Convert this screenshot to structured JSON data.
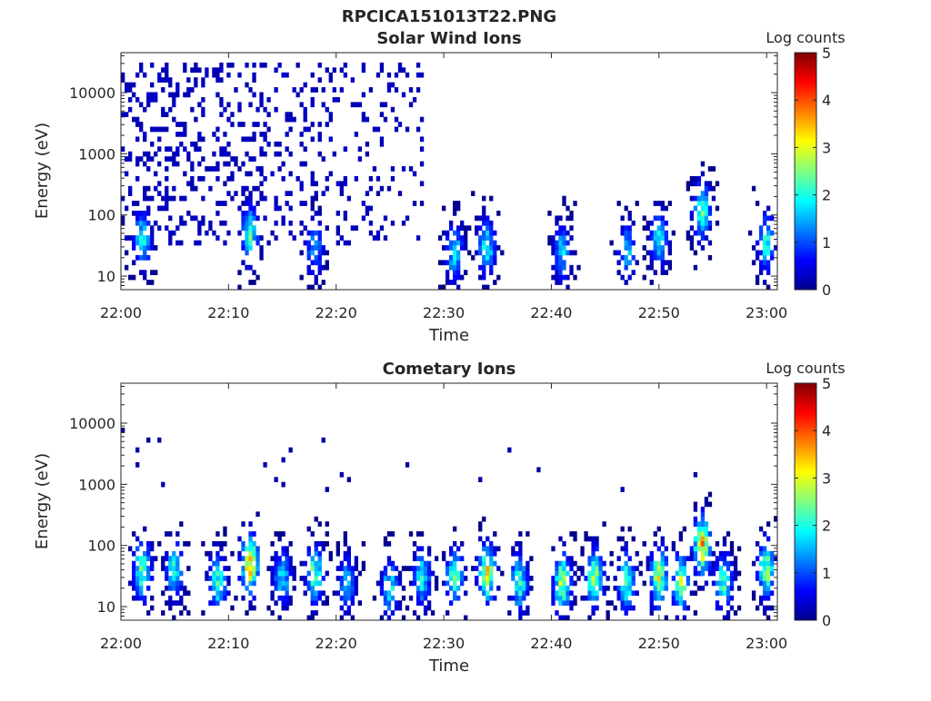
{
  "figure": {
    "title": "RPCICA151013T22.PNG"
  },
  "chart_data": [
    {
      "type": "heatmap",
      "title": "Solar Wind Ions",
      "xlabel": "Time",
      "ylabel": "Energy (eV)",
      "x_range": [
        "22:00",
        "23:01"
      ],
      "x_ticks": [
        "22:00",
        "22:10",
        "22:20",
        "22:30",
        "22:40",
        "22:50",
        "23:00"
      ],
      "y_scale": "log",
      "y_range": [
        6,
        45000
      ],
      "y_ticks": [
        "10",
        "100",
        "1000",
        "10000"
      ],
      "colorbar": {
        "label": "Log counts",
        "min": 0,
        "max": 5,
        "ticks": [
          "0",
          "1",
          "2",
          "3",
          "4",
          "5"
        ],
        "colormap": "jet"
      },
      "bursts": [
        {
          "t": "22:02",
          "e_peak": 40,
          "level": 2.0
        },
        {
          "t": "22:12",
          "e_peak": 50,
          "level": 2.2
        },
        {
          "t": "22:18",
          "e_peak": 30,
          "level": 1.5
        },
        {
          "t": "22:31",
          "e_peak": 25,
          "level": 1.8
        },
        {
          "t": "22:34",
          "e_peak": 30,
          "level": 2.0
        },
        {
          "t": "22:41",
          "e_peak": 25,
          "level": 1.7
        },
        {
          "t": "22:47",
          "e_peak": 25,
          "level": 1.6
        },
        {
          "t": "22:50",
          "e_peak": 40,
          "level": 1.8
        },
        {
          "t": "22:54",
          "e_peak": 120,
          "level": 2.3
        },
        {
          "t": "23:00",
          "e_peak": 35,
          "level": 2.0
        }
      ],
      "diffuse_high_energy": {
        "t_start": "22:00",
        "t_end": "22:28",
        "e_min": 30,
        "e_max": 30000,
        "level": 0.3
      }
    },
    {
      "type": "heatmap",
      "title": "Cometary Ions",
      "xlabel": "Time",
      "ylabel": "Energy (eV)",
      "x_range": [
        "22:00",
        "23:01"
      ],
      "x_ticks": [
        "22:00",
        "22:10",
        "22:20",
        "22:30",
        "22:40",
        "22:50",
        "23:00"
      ],
      "y_scale": "log",
      "y_range": [
        6,
        45000
      ],
      "y_ticks": [
        "10",
        "100",
        "1000",
        "10000"
      ],
      "colorbar": {
        "label": "Log counts",
        "min": 0,
        "max": 5,
        "ticks": [
          "0",
          "1",
          "2",
          "3",
          "4",
          "5"
        ],
        "colormap": "jet"
      },
      "bursts": [
        {
          "t": "22:02",
          "e_peak": 40,
          "level": 2.6
        },
        {
          "t": "22:05",
          "e_peak": 40,
          "level": 2.0
        },
        {
          "t": "22:09",
          "e_peak": 25,
          "level": 2.2
        },
        {
          "t": "22:12",
          "e_peak": 50,
          "level": 3.4
        },
        {
          "t": "22:15",
          "e_peak": 30,
          "level": 1.8
        },
        {
          "t": "22:18",
          "e_peak": 35,
          "level": 2.4
        },
        {
          "t": "22:21",
          "e_peak": 25,
          "level": 1.5
        },
        {
          "t": "22:25",
          "e_peak": 20,
          "level": 2.0
        },
        {
          "t": "22:28",
          "e_peak": 30,
          "level": 2.0
        },
        {
          "t": "22:31",
          "e_peak": 30,
          "level": 2.4
        },
        {
          "t": "22:34",
          "e_peak": 35,
          "level": 3.2
        },
        {
          "t": "22:37",
          "e_peak": 25,
          "level": 2.2
        },
        {
          "t": "22:41",
          "e_peak": 25,
          "level": 2.8
        },
        {
          "t": "22:44",
          "e_peak": 30,
          "level": 2.6
        },
        {
          "t": "22:47",
          "e_peak": 25,
          "level": 2.4
        },
        {
          "t": "22:50",
          "e_peak": 30,
          "level": 2.9
        },
        {
          "t": "22:52",
          "e_peak": 25,
          "level": 2.6
        },
        {
          "t": "22:54",
          "e_peak": 100,
          "level": 3.4
        },
        {
          "t": "22:56",
          "e_peak": 25,
          "level": 2.2
        },
        {
          "t": "23:00",
          "e_peak": 40,
          "level": 2.6
        }
      ],
      "diffuse_high_energy": {
        "t_start": "22:00",
        "t_end": "22:56",
        "e_min": 800,
        "e_max": 9000,
        "level": 0.2
      }
    }
  ]
}
